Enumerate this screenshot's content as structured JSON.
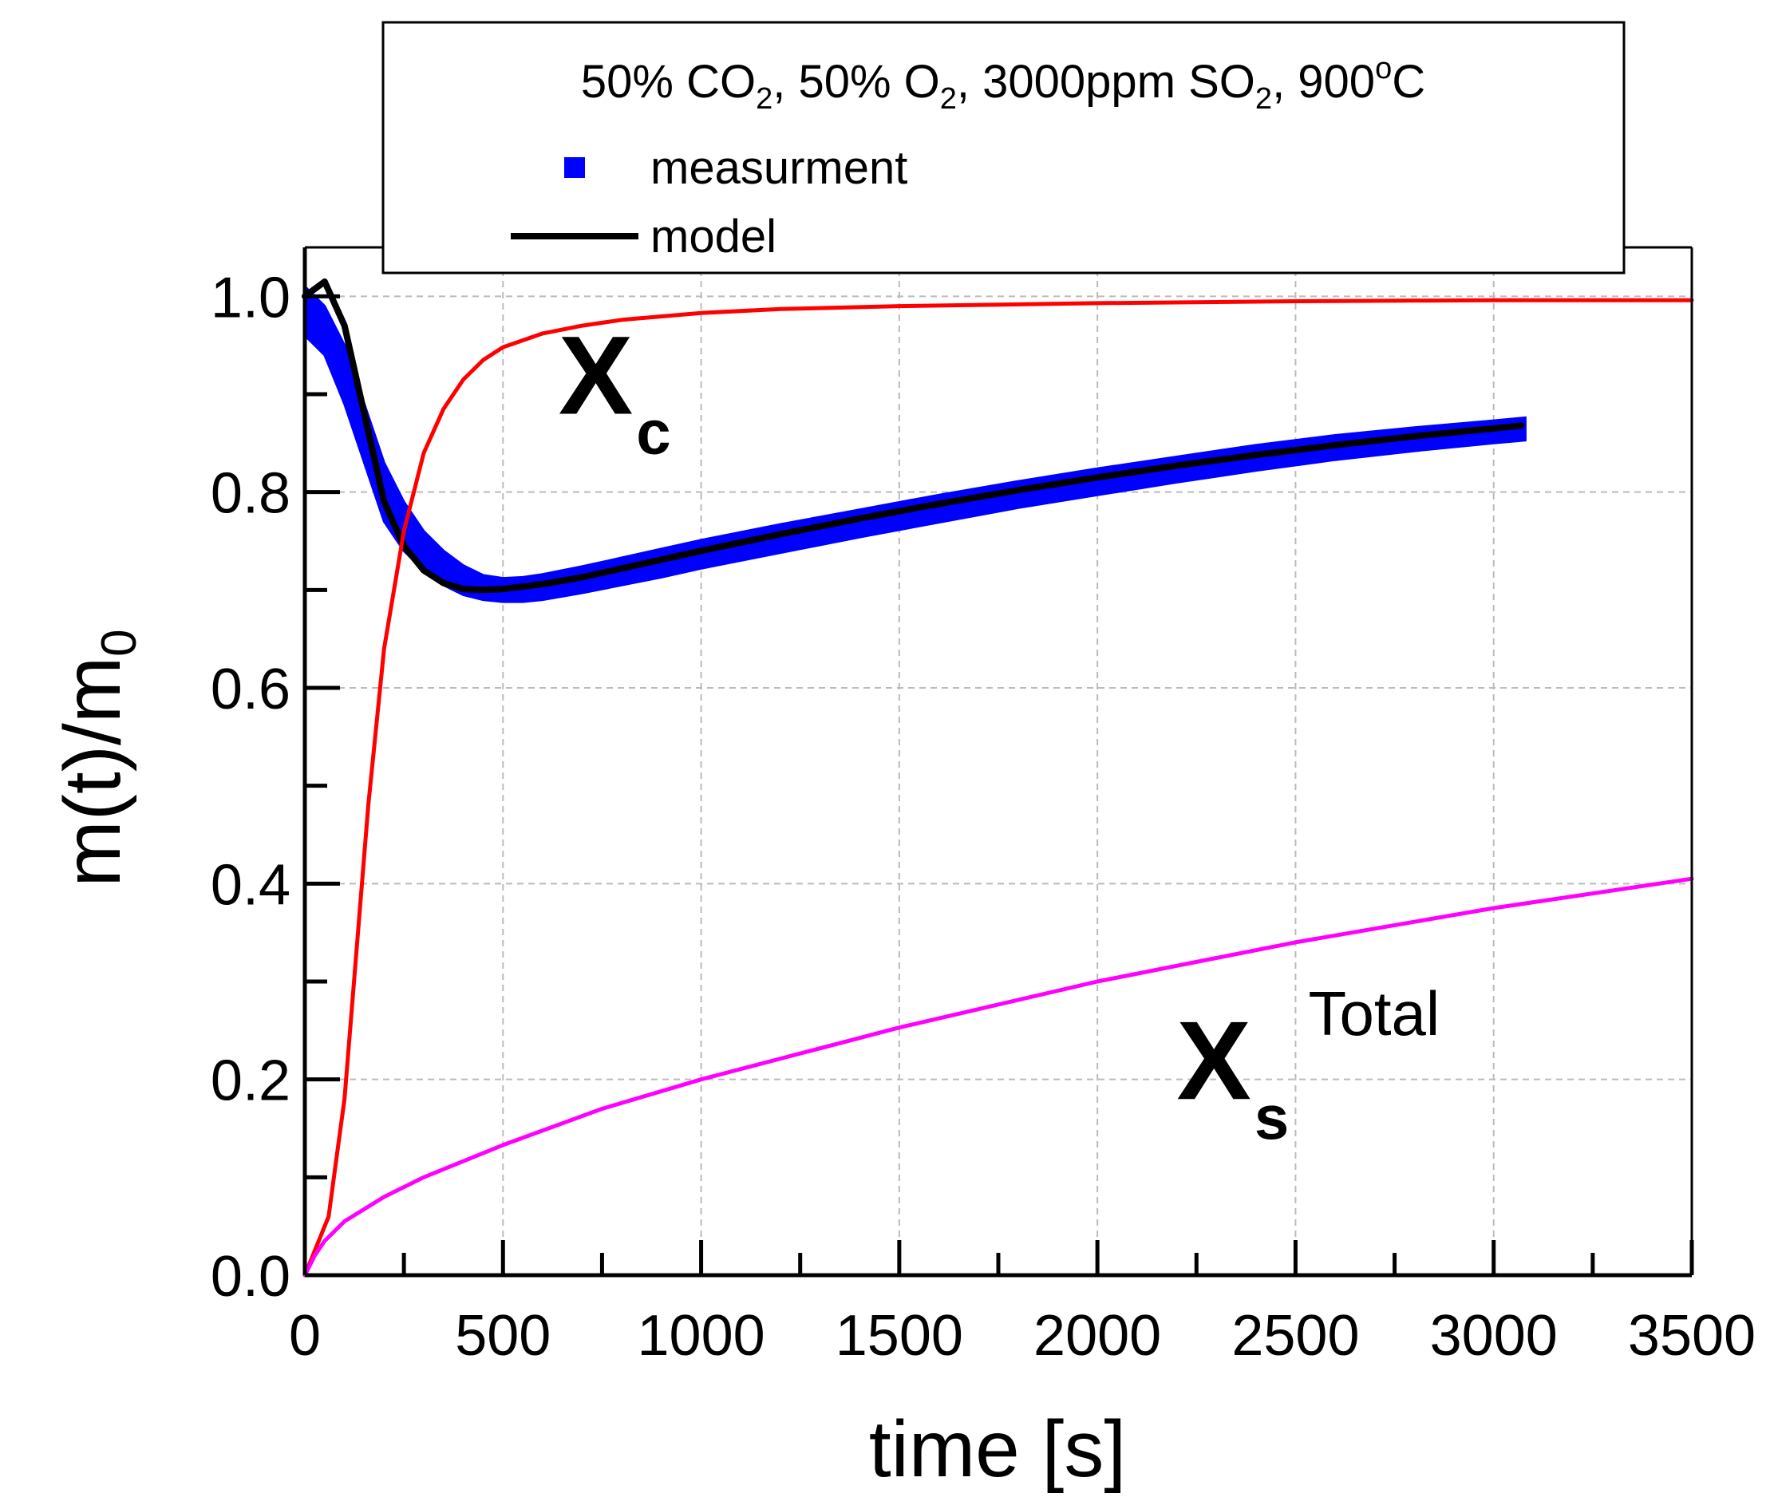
{
  "chart_data": {
    "type": "line",
    "title": "",
    "xlabel": "time [s]",
    "ylabel_main": "m(t)/m",
    "ylabel_sub": "0",
    "xlim": [
      0,
      3500
    ],
    "ylim": [
      0,
      1.05
    ],
    "xticks": [
      0,
      500,
      1000,
      1500,
      2000,
      2500,
      3000,
      3500
    ],
    "xtick_labels": [
      "0",
      "500",
      "1000",
      "1500",
      "2000",
      "2500",
      "3000",
      "3500"
    ],
    "yticks": [
      0.0,
      0.2,
      0.4,
      0.6,
      0.8,
      1.0
    ],
    "ytick_labels": [
      "0.0",
      "0.2",
      "0.4",
      "0.6",
      "0.8",
      "1.0"
    ],
    "x_minor_step": 250,
    "y_minor_step": 0.1,
    "grid": true,
    "legend": {
      "position": "top-center",
      "title_parts": [
        {
          "text": "50% CO"
        },
        {
          "text": "2",
          "sub": true
        },
        {
          "text": ", 50% O"
        },
        {
          "text": "2",
          "sub": true
        },
        {
          "text": ", 3000ppm SO"
        },
        {
          "text": "2",
          "sub": true
        },
        {
          "text": ", 900"
        },
        {
          "text": "o",
          "sup": true
        },
        {
          "text": "C"
        }
      ],
      "entries": [
        {
          "label": "measurment",
          "marker": "square",
          "color": "#0000ff"
        },
        {
          "label": "model",
          "marker": "line",
          "color": "#000000"
        }
      ]
    },
    "series": [
      {
        "name": "measurment",
        "color": "#0000ff",
        "style": "band",
        "x": [
          0,
          50,
          100,
          150,
          200,
          250,
          300,
          350,
          400,
          450,
          500,
          550,
          600,
          700,
          800,
          900,
          1000,
          1200,
          1400,
          1600,
          1800,
          2000,
          2200,
          2400,
          2600,
          2800,
          3000,
          3080
        ],
        "upper": [
          1.01,
          0.99,
          0.95,
          0.89,
          0.83,
          0.79,
          0.76,
          0.74,
          0.725,
          0.715,
          0.712,
          0.713,
          0.716,
          0.724,
          0.733,
          0.742,
          0.751,
          0.767,
          0.782,
          0.797,
          0.811,
          0.824,
          0.836,
          0.848,
          0.858,
          0.866,
          0.873,
          0.876
        ],
        "lower": [
          0.96,
          0.94,
          0.89,
          0.83,
          0.77,
          0.74,
          0.72,
          0.705,
          0.695,
          0.69,
          0.688,
          0.688,
          0.69,
          0.697,
          0.705,
          0.713,
          0.722,
          0.738,
          0.754,
          0.769,
          0.784,
          0.797,
          0.81,
          0.822,
          0.833,
          0.842,
          0.85,
          0.853
        ]
      },
      {
        "name": "model",
        "color": "#000000",
        "x": [
          0,
          50,
          100,
          150,
          200,
          250,
          300,
          350,
          400,
          450,
          500,
          600,
          700,
          800,
          900,
          1000,
          1200,
          1400,
          1600,
          1800,
          2000,
          2200,
          2400,
          2600,
          2800,
          3000,
          3070
        ],
        "y": [
          1.0,
          1.015,
          0.97,
          0.88,
          0.79,
          0.745,
          0.72,
          0.707,
          0.701,
          0.7,
          0.701,
          0.706,
          0.713,
          0.722,
          0.731,
          0.74,
          0.757,
          0.773,
          0.788,
          0.802,
          0.815,
          0.827,
          0.838,
          0.848,
          0.857,
          0.865,
          0.868
        ]
      },
      {
        "name": "X_c",
        "color": "#ff0000",
        "x": [
          0,
          30,
          60,
          80,
          100,
          130,
          160,
          200,
          250,
          300,
          350,
          400,
          450,
          500,
          600,
          700,
          800,
          1000,
          1200,
          1500,
          2000,
          2500,
          3000,
          3500
        ],
        "y": [
          0.0,
          0.03,
          0.06,
          0.12,
          0.18,
          0.33,
          0.48,
          0.64,
          0.76,
          0.84,
          0.885,
          0.915,
          0.935,
          0.948,
          0.962,
          0.97,
          0.976,
          0.983,
          0.987,
          0.99,
          0.993,
          0.995,
          0.996,
          0.996
        ]
      },
      {
        "name": "X_s Total",
        "color": "#ff00ff",
        "x": [
          0,
          25,
          50,
          100,
          200,
          300,
          500,
          750,
          1000,
          1500,
          2000,
          2500,
          3000,
          3500
        ],
        "y": [
          0.0,
          0.02,
          0.035,
          0.055,
          0.08,
          0.1,
          0.133,
          0.17,
          0.2,
          0.253,
          0.3,
          0.34,
          0.375,
          0.405
        ]
      }
    ],
    "annotations": [
      {
        "name": "xc",
        "main": "X",
        "sub": "c",
        "sup": "",
        "x": 640,
        "y": 0.88
      },
      {
        "name": "xs",
        "main": "X",
        "sub": "s",
        "sup": "Total",
        "x": 2200,
        "y": 0.18
      }
    ]
  }
}
